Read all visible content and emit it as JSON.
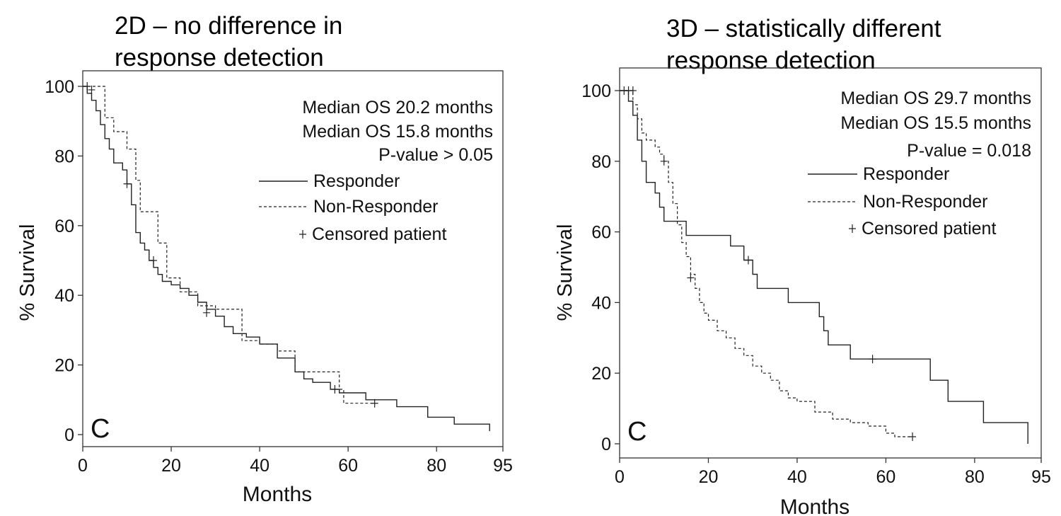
{
  "chart_data": [
    {
      "type": "line",
      "title": "2D – no difference in response detection",
      "panel_label": "C",
      "xlabel": "Months",
      "ylabel": "% Survival",
      "xlim": [
        0,
        95
      ],
      "ylim": [
        0,
        100
      ],
      "x_ticks": [
        0,
        20,
        40,
        60,
        80,
        95
      ],
      "y_ticks": [
        0,
        20,
        40,
        60,
        80,
        100
      ],
      "grid": false,
      "legend_position": "top-right",
      "annotations": [
        "Median OS 20.2 months",
        "Median OS 15.8 months",
        "P-value > 0.05"
      ],
      "legend": {
        "responder": "Responder",
        "non_responder": "Non-Responder",
        "censored": "Censored patient"
      },
      "series": [
        {
          "name": "Responder",
          "style": "solid",
          "x": [
            0,
            1,
            2,
            3,
            4,
            5,
            6,
            7,
            9,
            10,
            11,
            12,
            13,
            14,
            15,
            16,
            17,
            18,
            20,
            22,
            24,
            26,
            28,
            30,
            32,
            34,
            37,
            40,
            44,
            48,
            50,
            52,
            56,
            58,
            64,
            71,
            78,
            84,
            92
          ],
          "y": [
            100,
            98,
            96,
            93,
            89,
            85,
            82,
            78,
            76,
            72,
            66,
            58,
            55,
            53,
            50,
            48,
            46,
            44,
            43,
            42,
            40,
            38,
            36,
            34,
            31,
            29,
            28,
            26,
            22,
            18,
            16,
            15,
            13,
            12,
            10,
            8,
            5,
            3,
            1
          ]
        },
        {
          "name": "Non-Responder",
          "style": "dashed",
          "x": [
            0,
            3,
            5,
            7,
            10,
            12,
            13,
            17,
            19,
            22,
            26,
            30,
            36,
            40,
            44,
            48,
            58,
            59,
            62,
            66
          ],
          "y": [
            100,
            100,
            91,
            87,
            82,
            73,
            64,
            55,
            45,
            41,
            37,
            36,
            27,
            26,
            24,
            18,
            13,
            9,
            9,
            9
          ]
        }
      ],
      "censored": [
        {
          "series": "Responder",
          "x": 1,
          "y": 100
        },
        {
          "series": "Responder",
          "x": 2,
          "y": 99
        },
        {
          "series": "Responder",
          "x": 10,
          "y": 72
        },
        {
          "series": "Responder",
          "x": 16,
          "y": 50
        },
        {
          "series": "Responder",
          "x": 28,
          "y": 35
        },
        {
          "series": "Responder",
          "x": 57,
          "y": 13
        },
        {
          "series": "Non-Responder",
          "x": 66,
          "y": 9
        }
      ]
    },
    {
      "type": "line",
      "title": "3D – statistically different response detection",
      "panel_label": "C",
      "xlabel": "Months",
      "ylabel": "% Survival",
      "xlim": [
        0,
        95
      ],
      "ylim": [
        0,
        100
      ],
      "x_ticks": [
        0,
        20,
        40,
        60,
        80,
        95
      ],
      "y_ticks": [
        0,
        20,
        40,
        60,
        80,
        100
      ],
      "grid": false,
      "legend_position": "top-right",
      "annotations": [
        "Median OS 29.7 months",
        "Median OS 15.5 months",
        "P-value = 0.018"
      ],
      "legend": {
        "responder": "Responder",
        "non_responder": "Non-Responder",
        "censored": "Censored patient"
      },
      "series": [
        {
          "name": "Responder",
          "style": "solid",
          "x": [
            0,
            2,
            3,
            4,
            5,
            6,
            8,
            9,
            10,
            11,
            15,
            20,
            25,
            28,
            30,
            31,
            34,
            38,
            42,
            45,
            46,
            47,
            48,
            52,
            58,
            65,
            70,
            74,
            82,
            88,
            92
          ],
          "y": [
            100,
            97,
            93,
            86,
            80,
            74,
            71,
            67,
            63,
            63,
            59,
            59,
            56,
            52,
            48,
            44,
            44,
            40,
            40,
            36,
            32,
            28,
            28,
            24,
            24,
            24,
            18,
            12,
            6,
            6,
            0
          ]
        },
        {
          "name": "Non-Responder",
          "style": "dashed",
          "x": [
            0,
            3,
            4,
            5,
            6,
            8,
            9,
            10,
            11,
            12,
            13,
            14,
            15,
            16,
            17,
            18,
            19,
            20,
            22,
            24,
            26,
            28,
            30,
            32,
            34,
            36,
            38,
            40,
            44,
            48,
            52,
            56,
            60,
            62,
            66
          ],
          "y": [
            100,
            96,
            92,
            88,
            86,
            84,
            82,
            80,
            74,
            68,
            62,
            57,
            53,
            48,
            44,
            40,
            37,
            35,
            32,
            30,
            27,
            25,
            22,
            20,
            18,
            15,
            13,
            12,
            9,
            7,
            6,
            5,
            3,
            2,
            2
          ]
        }
      ],
      "censored": [
        {
          "series": "Responder",
          "x": 1,
          "y": 100
        },
        {
          "series": "Responder",
          "x": 2,
          "y": 100
        },
        {
          "series": "Responder",
          "x": 3,
          "y": 100
        },
        {
          "series": "Responder",
          "x": 29,
          "y": 52
        },
        {
          "series": "Responder",
          "x": 57,
          "y": 24
        },
        {
          "series": "Non-Responder",
          "x": 10,
          "y": 80
        },
        {
          "series": "Non-Responder",
          "x": 16,
          "y": 47
        },
        {
          "series": "Non-Responder",
          "x": 66,
          "y": 2
        }
      ]
    }
  ]
}
